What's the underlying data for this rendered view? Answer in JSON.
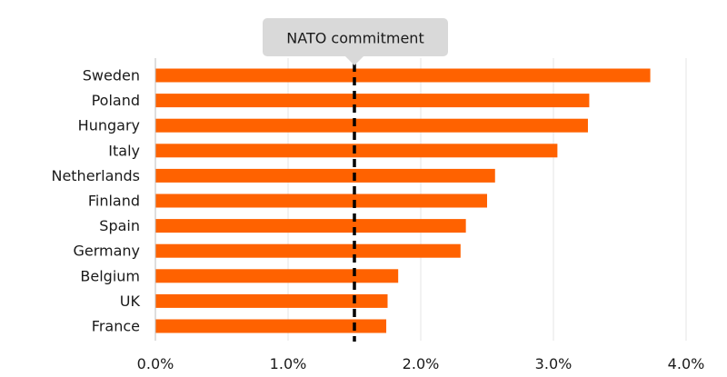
{
  "chart_data": {
    "type": "bar",
    "orientation": "horizontal",
    "title": "",
    "xlabel": "",
    "ylabel": "",
    "categories": [
      "Sweden",
      "Poland",
      "Hungary",
      "Italy",
      "Netherlands",
      "Finland",
      "Spain",
      "Germany",
      "Belgium",
      "UK",
      "France"
    ],
    "values": [
      3.73,
      3.27,
      3.26,
      3.03,
      2.56,
      2.5,
      2.34,
      2.3,
      1.83,
      1.75,
      1.74
    ],
    "xlim": [
      0,
      4
    ],
    "xticks": [
      0,
      1,
      2,
      3,
      4
    ],
    "xtick_labels": [
      "0.0%",
      "1.0%",
      "2.0%",
      "3.0%",
      "4.0%"
    ],
    "grid": "vertical",
    "reference_line": {
      "value": 1.5,
      "label": "NATO commitment",
      "style": "dashed"
    }
  },
  "colors": {
    "bar": "#ff6200",
    "gridline": "#e6e6e6",
    "axis": "#bdbdbd",
    "reference_line": "#000000",
    "callout_bg": "#d9d9d9",
    "text": "#1a1a1a"
  }
}
